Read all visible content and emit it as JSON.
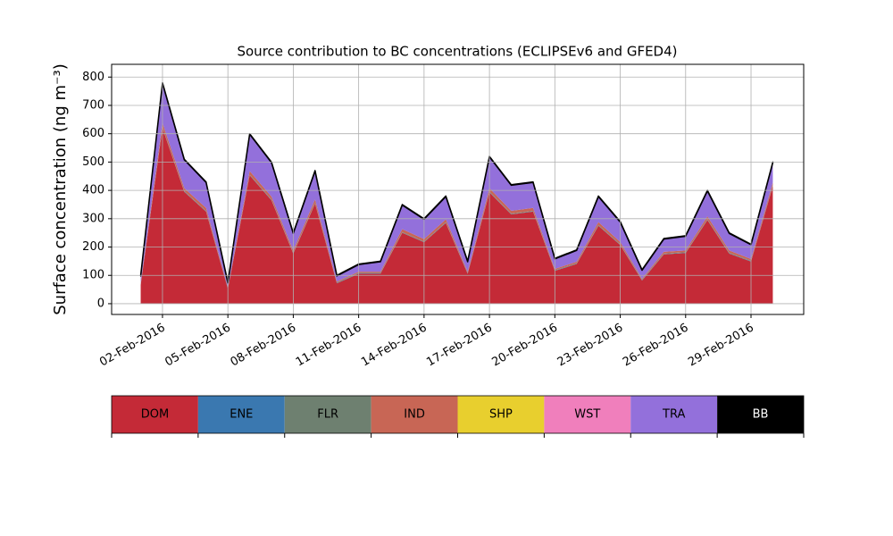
{
  "chart_data": {
    "type": "stacked_area",
    "title": "Source contribution to BC concentrations (ECLIPSEv6 and GFED4)",
    "y_label": "Surface concentration (ng m⁻³)",
    "x": [
      "2016-02-01",
      "2016-02-02",
      "2016-02-03",
      "2016-02-04",
      "2016-02-05",
      "2016-02-06",
      "2016-02-07",
      "2016-02-08",
      "2016-02-09",
      "2016-02-10",
      "2016-02-11",
      "2016-02-12",
      "2016-02-13",
      "2016-02-14",
      "2016-02-15",
      "2016-02-16",
      "2016-02-17",
      "2016-02-18",
      "2016-02-19",
      "2016-02-20",
      "2016-02-21",
      "2016-02-22",
      "2016-02-23",
      "2016-02-24",
      "2016-02-25",
      "2016-02-26",
      "2016-02-27",
      "2016-02-28",
      "2016-02-29",
      "2016-03-01"
    ],
    "xlim": [
      "2016-01-30T16:00",
      "2016-03-02T10:00"
    ],
    "xticks": [
      {
        "value": "2016-02-02",
        "label": "02-Feb-2016"
      },
      {
        "value": "2016-02-05",
        "label": "05-Feb-2016"
      },
      {
        "value": "2016-02-08",
        "label": "08-Feb-2016"
      },
      {
        "value": "2016-02-11",
        "label": "11-Feb-2016"
      },
      {
        "value": "2016-02-14",
        "label": "14-Feb-2016"
      },
      {
        "value": "2016-02-17",
        "label": "17-Feb-2016"
      },
      {
        "value": "2016-02-20",
        "label": "20-Feb-2016"
      },
      {
        "value": "2016-02-23",
        "label": "23-Feb-2016"
      },
      {
        "value": "2016-02-26",
        "label": "26-Feb-2016"
      },
      {
        "value": "2016-02-29",
        "label": "29-Feb-2016"
      }
    ],
    "ylim": [
      -38,
      845
    ],
    "yticks": [
      0,
      100,
      200,
      300,
      400,
      500,
      600,
      700,
      800
    ],
    "grid": true,
    "legend": "bottom",
    "series": [
      {
        "name": "DOM",
        "color": "#c42a37",
        "values": [
          67,
          620,
          395,
          325,
          53,
          453,
          365,
          177,
          353,
          72,
          106,
          106,
          250,
          217,
          285,
          106,
          393,
          315,
          325,
          116,
          140,
          275,
          207,
          82,
          174,
          179,
          295,
          177,
          149,
          415
        ]
      },
      {
        "name": "ENE",
        "color": "#3a78b0",
        "values": [
          1,
          1,
          1,
          1,
          1,
          1,
          1,
          1,
          1,
          1,
          1,
          1,
          1,
          1,
          1,
          1,
          1,
          1,
          1,
          1,
          1,
          1,
          1,
          1,
          1,
          1,
          1,
          1,
          1,
          1
        ]
      },
      {
        "name": "FLR",
        "color": "#6e8070",
        "values": [
          2,
          2,
          2,
          2,
          2,
          2,
          2,
          2,
          2,
          2,
          2,
          2,
          2,
          2,
          2,
          2,
          2,
          2,
          2,
          2,
          2,
          2,
          2,
          2,
          2,
          2,
          2,
          2,
          2,
          2
        ]
      },
      {
        "name": "IND",
        "color": "#c86655",
        "values": [
          3,
          15,
          10,
          10,
          2,
          12,
          10,
          8,
          12,
          3,
          4,
          4,
          10,
          8,
          10,
          4,
          12,
          10,
          10,
          4,
          5,
          10,
          8,
          3,
          6,
          6,
          10,
          8,
          6,
          10
        ]
      },
      {
        "name": "SHP",
        "color": "#e8cf2e",
        "values": [
          0,
          0,
          0,
          0,
          0,
          0,
          0,
          0,
          0,
          0,
          0,
          0,
          0,
          0,
          0,
          0,
          0,
          0,
          0,
          0,
          0,
          0,
          0,
          0,
          0,
          0,
          0,
          0,
          0,
          0
        ]
      },
      {
        "name": "WST",
        "color": "#f07fbc",
        "values": [
          0,
          0,
          0,
          0,
          0,
          0,
          0,
          0,
          0,
          0,
          0,
          0,
          0,
          0,
          0,
          0,
          0,
          0,
          0,
          0,
          0,
          0,
          0,
          0,
          0,
          0,
          0,
          0,
          0,
          0
        ]
      },
      {
        "name": "TRA",
        "color": "#9370db",
        "values": [
          25,
          140,
          100,
          90,
          15,
          130,
          120,
          60,
          100,
          20,
          25,
          35,
          85,
          70,
          80,
          35,
          110,
          90,
          90,
          35,
          40,
          90,
          70,
          30,
          45,
          50,
          90,
          60,
          50,
          70
        ]
      },
      {
        "name": "BB",
        "color": "#000000",
        "values": [
          2,
          2,
          2,
          2,
          2,
          2,
          2,
          2,
          2,
          2,
          2,
          2,
          2,
          2,
          2,
          2,
          2,
          2,
          2,
          2,
          2,
          2,
          2,
          2,
          2,
          2,
          2,
          2,
          2,
          2
        ]
      }
    ]
  }
}
